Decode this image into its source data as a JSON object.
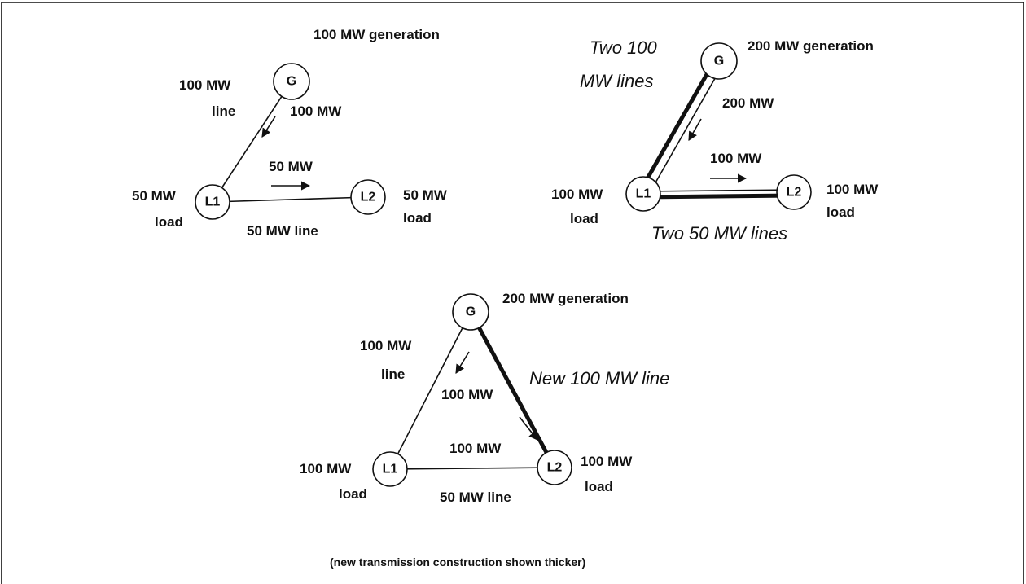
{
  "diagrams": [
    {
      "nodes": [
        "G",
        "L1",
        "L2"
      ],
      "generation": "100 MW generation",
      "gen_line": [
        "100 MW",
        "line"
      ],
      "gen_flow": "100 MW",
      "load_flow": "50 MW",
      "left_load": [
        "50 MW",
        "load"
      ],
      "load_line": "50 MW line",
      "right_load": [
        "50 MW",
        "load"
      ]
    },
    {
      "nodes": [
        "G",
        "L1",
        "L2"
      ],
      "generation": "200 MW generation",
      "gen_line": [
        "Two 100",
        "MW lines"
      ],
      "gen_flow": "200 MW",
      "load_flow": "100 MW",
      "left_load": [
        "100 MW",
        "load"
      ],
      "load_line": "Two 50 MW lines",
      "right_load": [
        "100 MW",
        "load"
      ]
    },
    {
      "nodes": [
        "G",
        "L1",
        "L2"
      ],
      "generation": "200 MW generation",
      "gen_line": [
        "100 MW",
        "line"
      ],
      "new_line": "New 100 MW line",
      "gen_flow": "100 MW",
      "load_flow": "100 MW",
      "left_load": [
        "100 MW",
        "load"
      ],
      "load_line": "50 MW line",
      "right_load": [
        "100 MW",
        "load"
      ]
    }
  ],
  "caption": "(new transmission construction shown thicker)"
}
